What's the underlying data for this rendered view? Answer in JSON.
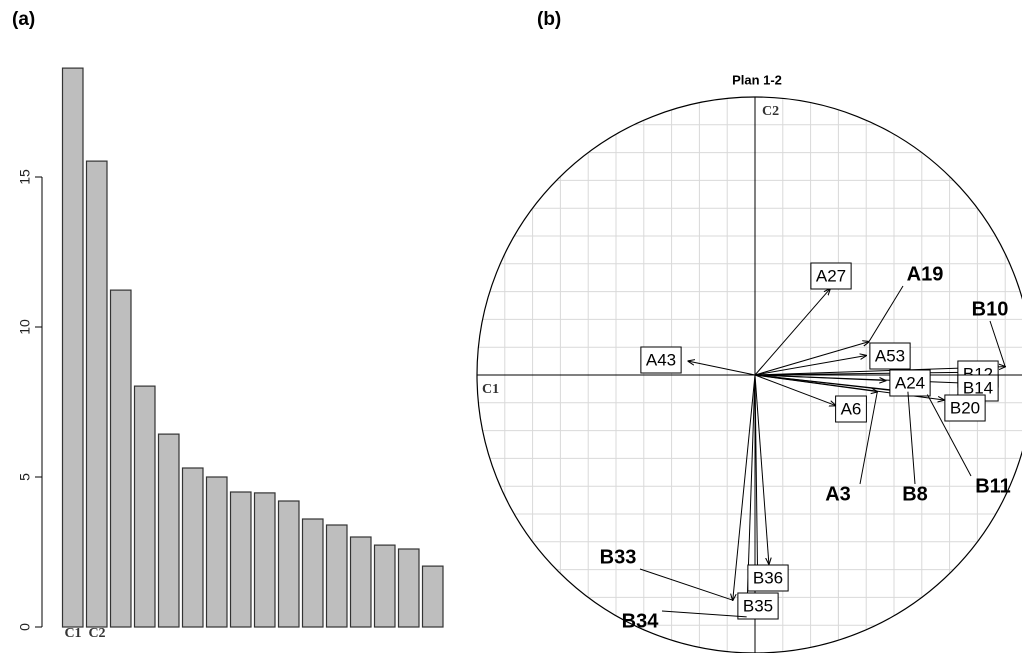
{
  "chart_data": [
    {
      "type": "bar",
      "panel_label": "(a)",
      "categories": [
        "C1",
        "C2",
        null,
        null,
        null,
        null,
        null,
        null,
        null,
        null,
        null,
        null,
        null,
        null,
        null,
        null
      ],
      "values": [
        18.63,
        15.53,
        11.23,
        8.03,
        6.43,
        5.3,
        5.0,
        4.5,
        4.47,
        4.2,
        3.6,
        3.4,
        3.0,
        2.73,
        2.6,
        2.03
      ],
      "color": "#bebebe",
      "ylim": [
        0,
        19
      ],
      "yticks": [
        0,
        5,
        10,
        15
      ]
    },
    {
      "type": "scatter",
      "panel_label": "(b)",
      "title": "Plan 1-2",
      "xlabel": "C1",
      "ylabel": "C2",
      "xlim": [
        -1,
        1
      ],
      "ylim": [
        -1,
        1
      ],
      "grid": true,
      "labels": [
        "A27",
        "A43",
        "A19",
        "A53",
        "A24",
        "A6",
        "A3",
        "B8",
        "B10",
        "B11",
        "B12",
        "B14",
        "B20",
        "B36",
        "B35",
        "B34",
        "B33"
      ],
      "x": [
        0.27,
        -0.24,
        0.41,
        0.4,
        0.47,
        0.29,
        0.44,
        0.55,
        0.9,
        0.62,
        0.78,
        0.78,
        0.68,
        0.05,
        0.01,
        -0.03,
        -0.08
      ],
      "values": [
        0.31,
        0.05,
        0.12,
        0.07,
        -0.02,
        -0.11,
        -0.06,
        -0.06,
        0.03,
        -0.07,
        0.01,
        -0.03,
        -0.09,
        -0.68,
        -0.77,
        -0.87,
        -0.81
      ],
      "label_style": [
        "box",
        "box",
        "bold",
        "box",
        "box",
        "box",
        "bold",
        "bold",
        "bold",
        "bold",
        "box",
        "box",
        "box",
        "box",
        "box",
        "bold",
        "bold"
      ]
    }
  ]
}
